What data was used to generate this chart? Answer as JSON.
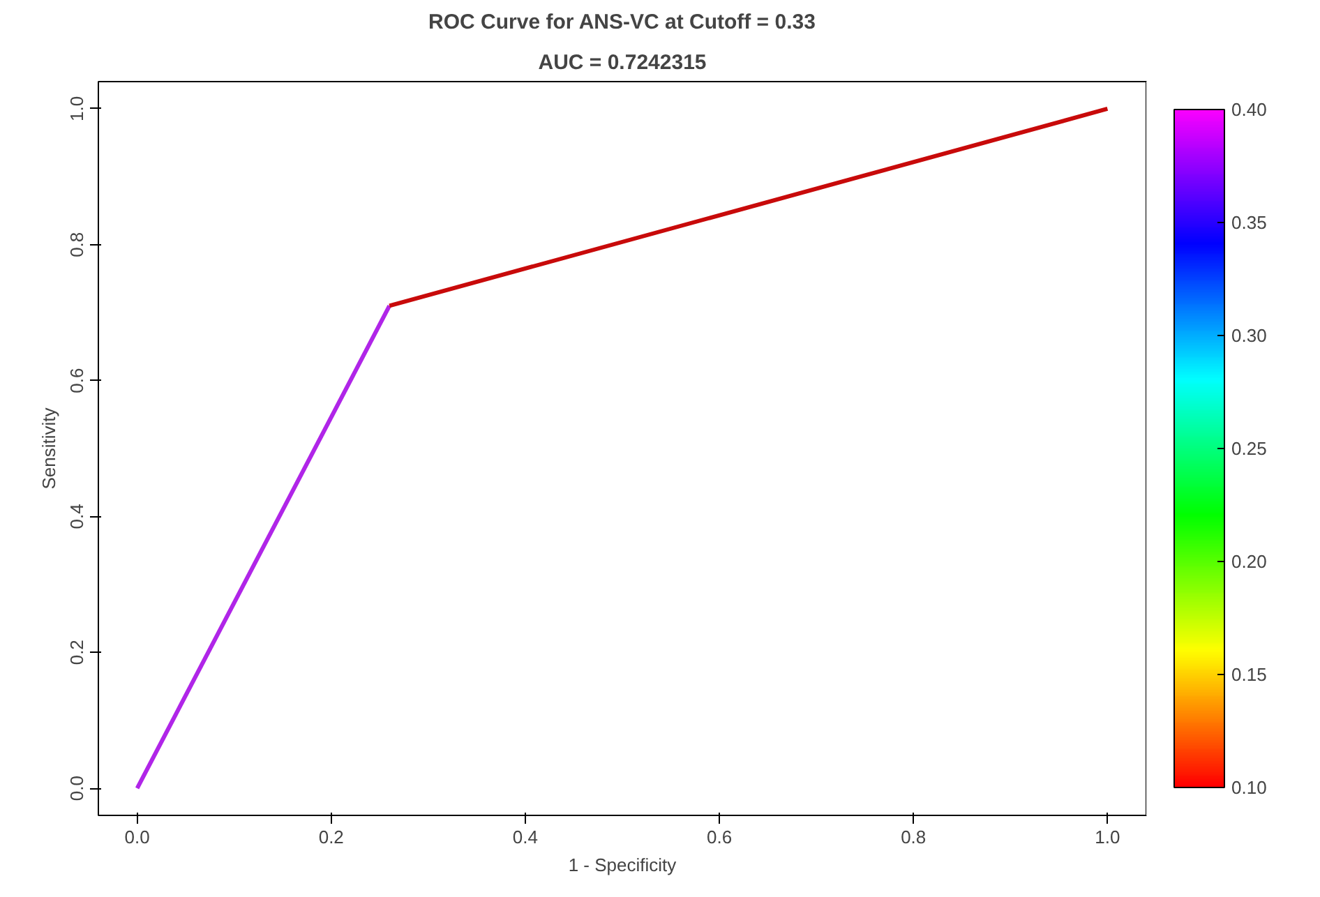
{
  "chart_data": {
    "type": "line",
    "title": "ROC Curve for ANS-VC at Cutoff = 0.33",
    "subtitle": "AUC = 0.7242315",
    "xlabel": "1 - Specificity",
    "ylabel": "Sensitivity",
    "series": [
      {
        "x": [
          0,
          0.26
        ],
        "values": [
          0,
          0.71
        ],
        "color": "#b025e8"
      },
      {
        "x": [
          0.26,
          1
        ],
        "values": [
          0.71,
          1
        ],
        "color": "#c80a0a"
      }
    ],
    "xlim": [
      -0.04,
      1.04
    ],
    "ylim": [
      -0.04,
      1.04
    ],
    "xticks": [
      {
        "value": 0,
        "label": "0.0"
      },
      0.2,
      0.4,
      0.6,
      0.8,
      {
        "value": 1,
        "label": "1.0"
      }
    ],
    "yticks": [
      {
        "value": 0,
        "label": "0.0"
      },
      0.2,
      0.4,
      0.6,
      0.8,
      {
        "value": 1,
        "label": "1.0"
      }
    ],
    "clim": [
      0.1,
      0.4
    ],
    "cticks": [
      {
        "value": 0.1,
        "label": "0.10"
      },
      0.15,
      {
        "value": 0.2,
        "label": "0.20"
      },
      0.25,
      {
        "value": 0.3,
        "label": "0.30"
      },
      0.35,
      {
        "value": 0.4,
        "label": "0.40"
      }
    ],
    "grid": false,
    "line_style": "solid"
  }
}
